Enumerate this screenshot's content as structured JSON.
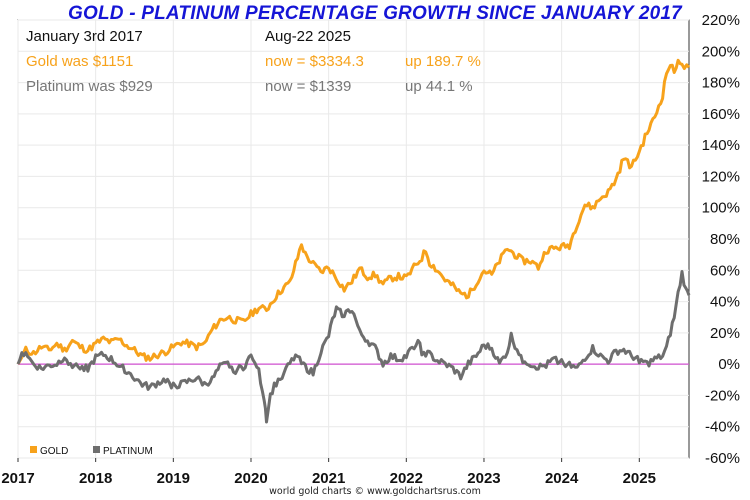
{
  "header": {
    "title": "GOLD - PLATINUM PERCENTAGE GROWTH SINCE JANUARY 2017",
    "start_label": "January 3rd 2017",
    "end_label": "Aug-22  2025",
    "gold_start": "Gold was $1151",
    "gold_now": "now = $3334.3",
    "gold_up": "up 189.7 %",
    "plat_start": "Platinum was $929",
    "plat_now": "now = $1339",
    "plat_up": "up 44.1 %"
  },
  "footer": "world gold charts © www.goldchartsrus.com",
  "colors": {
    "gold": "#f7a21b",
    "platinum": "#6e6e6e",
    "zero_line": "#d050d0",
    "title": "#1515d6"
  },
  "chart_data": {
    "type": "line",
    "title": "GOLD - PLATINUM PERCENTAGE GROWTH SINCE JANUARY 2017",
    "x_ticks": [
      "2017",
      "2018",
      "2019",
      "2020",
      "2021",
      "2022",
      "2023",
      "2024",
      "2025"
    ],
    "xlim": [
      2017.0,
      2025.64
    ],
    "ylim": [
      -60,
      220
    ],
    "y_ticks": [
      -60,
      -40,
      -20,
      0,
      20,
      40,
      60,
      80,
      100,
      120,
      140,
      160,
      180,
      200,
      220
    ],
    "y_tick_labels": [
      "-60%",
      "-40%",
      "-20%",
      "0%",
      "20%",
      "40%",
      "60%",
      "80%",
      "100%",
      "120%",
      "140%",
      "160%",
      "180%",
      "200%",
      "220%"
    ],
    "grid": true,
    "legend_position": "bottom-left",
    "series": [
      {
        "name": "GOLD",
        "points": [
          [
            2017.0,
            0
          ],
          [
            2017.1,
            9
          ],
          [
            2017.2,
            7
          ],
          [
            2017.3,
            11
          ],
          [
            2017.4,
            9
          ],
          [
            2017.5,
            13
          ],
          [
            2017.6,
            9
          ],
          [
            2017.7,
            15
          ],
          [
            2017.8,
            11
          ],
          [
            2017.9,
            9
          ],
          [
            2018.0,
            13
          ],
          [
            2018.1,
            16
          ],
          [
            2018.2,
            14
          ],
          [
            2018.3,
            16
          ],
          [
            2018.4,
            12
          ],
          [
            2018.5,
            9
          ],
          [
            2018.6,
            5
          ],
          [
            2018.7,
            4
          ],
          [
            2018.8,
            6
          ],
          [
            2018.9,
            8
          ],
          [
            2019.0,
            11
          ],
          [
            2019.1,
            14
          ],
          [
            2019.2,
            13
          ],
          [
            2019.3,
            11
          ],
          [
            2019.4,
            13
          ],
          [
            2019.5,
            22
          ],
          [
            2019.6,
            28
          ],
          [
            2019.7,
            30
          ],
          [
            2019.8,
            28
          ],
          [
            2019.9,
            27
          ],
          [
            2020.0,
            32
          ],
          [
            2020.1,
            36
          ],
          [
            2020.2,
            35
          ],
          [
            2020.3,
            42
          ],
          [
            2020.4,
            48
          ],
          [
            2020.5,
            52
          ],
          [
            2020.6,
            68
          ],
          [
            2020.65,
            77
          ],
          [
            2020.7,
            70
          ],
          [
            2020.8,
            64
          ],
          [
            2020.9,
            59
          ],
          [
            2021.0,
            62
          ],
          [
            2021.1,
            55
          ],
          [
            2021.2,
            48
          ],
          [
            2021.3,
            53
          ],
          [
            2021.4,
            61
          ],
          [
            2021.5,
            56
          ],
          [
            2021.6,
            57
          ],
          [
            2021.7,
            51
          ],
          [
            2021.8,
            55
          ],
          [
            2021.9,
            56
          ],
          [
            2022.0,
            55
          ],
          [
            2022.1,
            62
          ],
          [
            2022.2,
            68
          ],
          [
            2022.25,
            73
          ],
          [
            2022.3,
            65
          ],
          [
            2022.4,
            60
          ],
          [
            2022.5,
            54
          ],
          [
            2022.6,
            50
          ],
          [
            2022.7,
            45
          ],
          [
            2022.8,
            44
          ],
          [
            2022.9,
            52
          ],
          [
            2023.0,
            60
          ],
          [
            2023.1,
            57
          ],
          [
            2023.2,
            66
          ],
          [
            2023.3,
            74
          ],
          [
            2023.4,
            70
          ],
          [
            2023.5,
            66
          ],
          [
            2023.6,
            66
          ],
          [
            2023.7,
            62
          ],
          [
            2023.8,
            73
          ],
          [
            2023.9,
            74
          ],
          [
            2024.0,
            75
          ],
          [
            2024.1,
            76
          ],
          [
            2024.2,
            90
          ],
          [
            2024.3,
            102
          ],
          [
            2024.4,
            100
          ],
          [
            2024.5,
            106
          ],
          [
            2024.6,
            110
          ],
          [
            2024.7,
            118
          ],
          [
            2024.8,
            132
          ],
          [
            2024.9,
            126
          ],
          [
            2025.0,
            136
          ],
          [
            2025.1,
            148
          ],
          [
            2025.2,
            158
          ],
          [
            2025.3,
            172
          ],
          [
            2025.35,
            186
          ],
          [
            2025.4,
            192
          ],
          [
            2025.45,
            186
          ],
          [
            2025.5,
            196
          ],
          [
            2025.55,
            190
          ],
          [
            2025.64,
            189.7
          ]
        ]
      },
      {
        "name": "PLATINUM",
        "points": [
          [
            2017.0,
            0
          ],
          [
            2017.05,
            6
          ],
          [
            2017.1,
            8
          ],
          [
            2017.15,
            3
          ],
          [
            2017.2,
            0
          ],
          [
            2017.3,
            -3
          ],
          [
            2017.4,
            -1
          ],
          [
            2017.5,
            0
          ],
          [
            2017.6,
            5
          ],
          [
            2017.7,
            -1
          ],
          [
            2017.8,
            -1
          ],
          [
            2017.9,
            -3
          ],
          [
            2018.0,
            4
          ],
          [
            2018.1,
            6
          ],
          [
            2018.2,
            3
          ],
          [
            2018.3,
            -1
          ],
          [
            2018.4,
            -4
          ],
          [
            2018.5,
            -9
          ],
          [
            2018.6,
            -13
          ],
          [
            2018.7,
            -15
          ],
          [
            2018.8,
            -12
          ],
          [
            2018.9,
            -10
          ],
          [
            2019.0,
            -14
          ],
          [
            2019.1,
            -13
          ],
          [
            2019.2,
            -11
          ],
          [
            2019.3,
            -9
          ],
          [
            2019.4,
            -13
          ],
          [
            2019.5,
            -10
          ],
          [
            2019.6,
            -2
          ],
          [
            2019.7,
            0
          ],
          [
            2019.8,
            -4
          ],
          [
            2019.9,
            -2
          ],
          [
            2020.0,
            5
          ],
          [
            2020.05,
            3
          ],
          [
            2020.1,
            -5
          ],
          [
            2020.17,
            -22
          ],
          [
            2020.2,
            -35
          ],
          [
            2020.25,
            -20
          ],
          [
            2020.3,
            -14
          ],
          [
            2020.4,
            -7
          ],
          [
            2020.5,
            0
          ],
          [
            2020.6,
            7
          ],
          [
            2020.7,
            -2
          ],
          [
            2020.8,
            -6
          ],
          [
            2020.9,
            8
          ],
          [
            2021.0,
            18
          ],
          [
            2021.05,
            28
          ],
          [
            2021.1,
            35
          ],
          [
            2021.15,
            33
          ],
          [
            2021.2,
            32
          ],
          [
            2021.3,
            35
          ],
          [
            2021.35,
            28
          ],
          [
            2021.4,
            20
          ],
          [
            2021.5,
            15
          ],
          [
            2021.6,
            10
          ],
          [
            2021.7,
            0
          ],
          [
            2021.8,
            5
          ],
          [
            2021.9,
            3
          ],
          [
            2022.0,
            5
          ],
          [
            2022.1,
            12
          ],
          [
            2022.15,
            15
          ],
          [
            2022.2,
            8
          ],
          [
            2022.3,
            6
          ],
          [
            2022.4,
            2
          ],
          [
            2022.5,
            0
          ],
          [
            2022.6,
            -3
          ],
          [
            2022.7,
            -8
          ],
          [
            2022.8,
            0
          ],
          [
            2022.9,
            5
          ],
          [
            2023.0,
            12
          ],
          [
            2023.1,
            10
          ],
          [
            2023.2,
            0
          ],
          [
            2023.3,
            8
          ],
          [
            2023.35,
            18
          ],
          [
            2023.4,
            12
          ],
          [
            2023.5,
            3
          ],
          [
            2023.6,
            0
          ],
          [
            2023.7,
            -2
          ],
          [
            2023.8,
            -1
          ],
          [
            2023.9,
            3
          ],
          [
            2024.0,
            2
          ],
          [
            2024.1,
            -1
          ],
          [
            2024.2,
            -3
          ],
          [
            2024.3,
            4
          ],
          [
            2024.4,
            10
          ],
          [
            2024.5,
            5
          ],
          [
            2024.6,
            2
          ],
          [
            2024.7,
            8
          ],
          [
            2024.8,
            9
          ],
          [
            2024.9,
            5
          ],
          [
            2025.0,
            3
          ],
          [
            2025.1,
            0
          ],
          [
            2025.2,
            3
          ],
          [
            2025.3,
            5
          ],
          [
            2025.35,
            10
          ],
          [
            2025.4,
            20
          ],
          [
            2025.45,
            30
          ],
          [
            2025.5,
            45
          ],
          [
            2025.55,
            58
          ],
          [
            2025.6,
            47
          ],
          [
            2025.64,
            44.1
          ]
        ]
      }
    ]
  }
}
